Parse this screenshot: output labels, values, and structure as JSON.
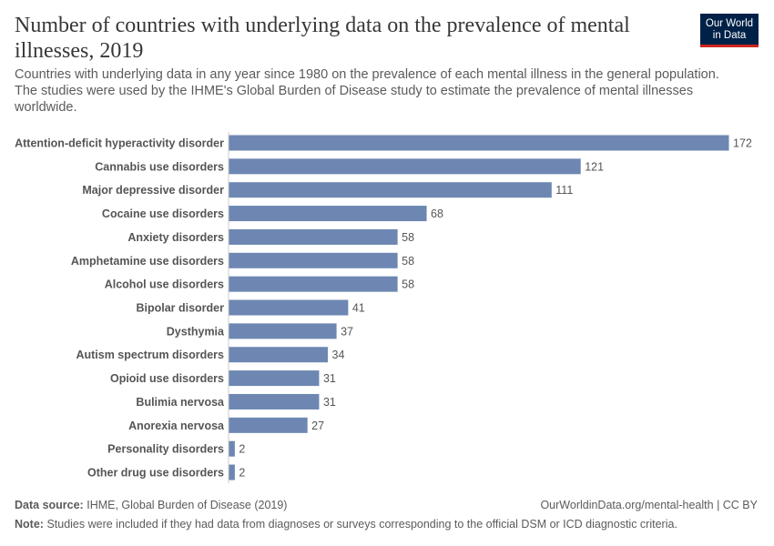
{
  "header": {
    "title": "Number of countries with underlying data on the prevalence of mental illnesses, 2019",
    "subtitle": "Countries with underlying data in any year since 1980 on the prevalence of each mental illness in the general population. The studies were used by the IHME's Global Burden of Disease study to estimate the prevalence of mental illnesses worldwide.",
    "logo": "Our World in Data"
  },
  "chart_data": {
    "type": "bar",
    "orientation": "horizontal",
    "bar_color": "#6d87b2",
    "categories": [
      "Attention-deficit hyperactivity disorder",
      "Cannabis use disorders",
      "Major depressive disorder",
      "Cocaine use disorders",
      "Anxiety disorders",
      "Amphetamine use disorders",
      "Alcohol use disorders",
      "Bipolar disorder",
      "Dysthymia",
      "Autism spectrum disorders",
      "Opioid use disorders",
      "Bulimia nervosa",
      "Anorexia nervosa",
      "Personality disorders",
      "Other drug use disorders"
    ],
    "values": [
      172,
      121,
      111,
      68,
      58,
      58,
      58,
      41,
      37,
      34,
      31,
      31,
      27,
      2,
      2
    ],
    "xlim": [
      0,
      172
    ]
  },
  "footer": {
    "source_label": "Data source:",
    "source": "IHME, Global Burden of Disease (2019)",
    "url": "OurWorldinData.org/mental-health | CC BY",
    "note_label": "Note:",
    "note": "Studies were included if they had data from diagnoses or surveys corresponding to the official DSM or ICD diagnostic criteria."
  }
}
